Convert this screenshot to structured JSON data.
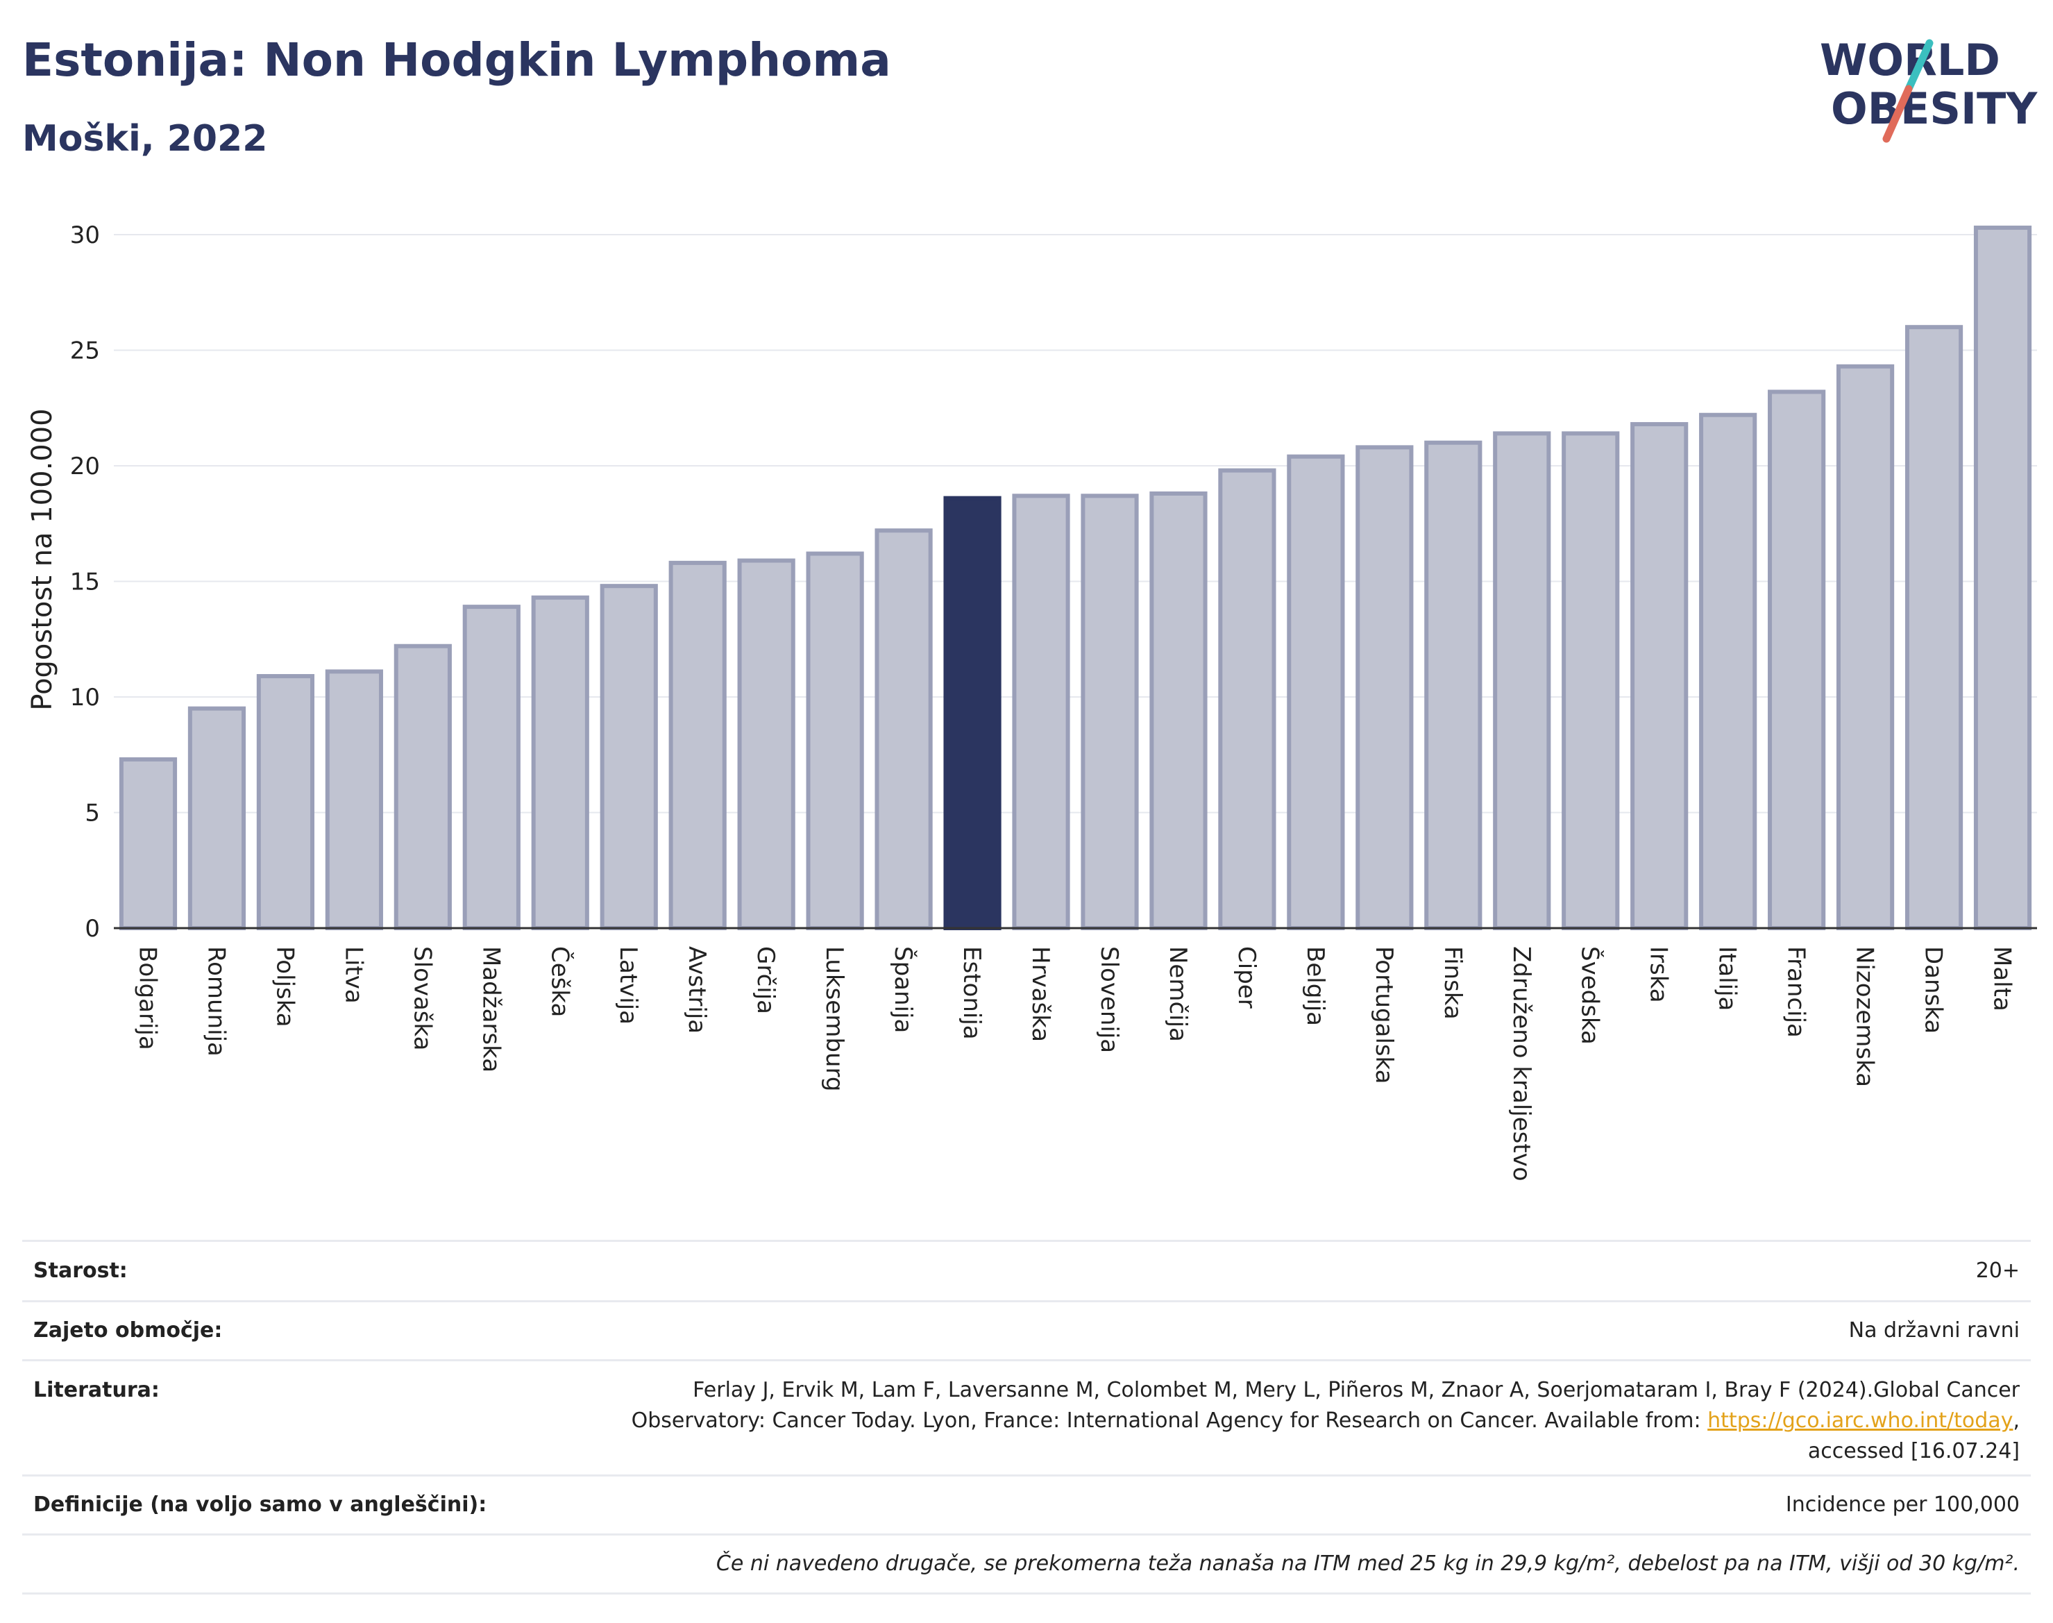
{
  "header": {
    "title": "Estonija: Non Hodgkin Lymphoma",
    "subtitle": "Moški, 2022"
  },
  "logo": {
    "line1": "WORLD",
    "line2": "OBESITY",
    "colors": {
      "text": "#2b3560",
      "slash_teal": "#3bbfbf",
      "slash_coral": "#e06b5a"
    }
  },
  "chart_data": {
    "type": "bar",
    "ylabel": "Pogostost na 100.000",
    "xlabel": "",
    "ylim": [
      0,
      31
    ],
    "yticks": [
      0,
      5,
      10,
      15,
      20,
      25,
      30
    ],
    "grid": true,
    "highlight": "Estonija",
    "colors": {
      "bar": "#c0c3d1",
      "bar_edge": "#9a9fb8",
      "highlight": "#2b3560"
    },
    "categories": [
      "Bolgarija",
      "Romunija",
      "Poljska",
      "Litva",
      "Slovaška",
      "Madžarska",
      "Češka",
      "Latvija",
      "Avstrija",
      "Grčija",
      "Luksemburg",
      "Španija",
      "Estonija",
      "Hrvaška",
      "Slovenija",
      "Nemčija",
      "Ciper",
      "Belgija",
      "Portugalska",
      "Finska",
      "Združeno kraljestvo",
      "Švedska",
      "Irska",
      "Italija",
      "Francija",
      "Nizozemska",
      "Danska",
      "Malta"
    ],
    "values": [
      7.3,
      9.5,
      10.9,
      11.1,
      12.2,
      13.9,
      14.3,
      14.8,
      15.8,
      15.9,
      16.2,
      17.2,
      18.6,
      18.7,
      18.7,
      18.8,
      19.8,
      20.4,
      20.8,
      21.0,
      21.4,
      21.4,
      21.8,
      22.2,
      23.2,
      24.3,
      26.0,
      30.3
    ]
  },
  "info": {
    "age_label": "Starost:",
    "age_value": "20+",
    "area_label": "Zajeto območje:",
    "area_value": "Na državni ravni",
    "ref_label": "Literatura:",
    "ref_line1": "Ferlay J, Ervik M, Lam F, Laversanne M, Colombet M, Mery L, Piñeros M, Znaor A, Soerjomataram I, Bray F (2024).Global Cancer",
    "ref_line2_pre": "Observatory: Cancer Today. Lyon, France: International Agency for Research on Cancer. Available from: ",
    "ref_link": "https://gco.iarc.who.int/today",
    "ref_line2_post": ",",
    "ref_line3": "accessed [16.07.24]",
    "def_label": "Definicije (na voljo samo v angleščini):",
    "def_value": "Incidence per 100,000",
    "note": "Če ni navedeno drugače, se prekomerna teža nanaša na ITM med 25 kg in 29,9 kg/m², debelost pa na ITM, višji od 30 kg/m²."
  }
}
